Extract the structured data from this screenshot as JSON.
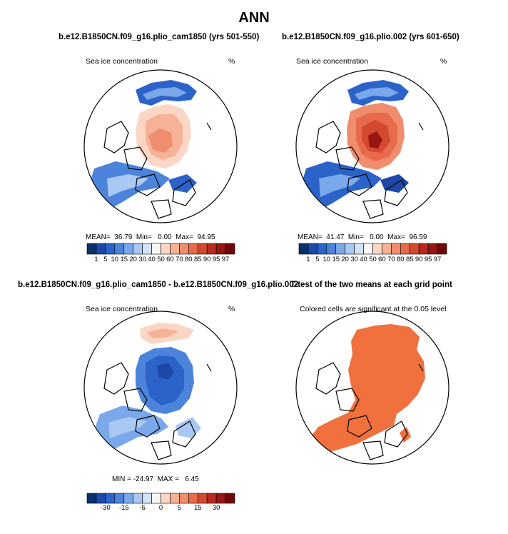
{
  "figure_title": "ANN",
  "colors": {
    "conc_levels": [
      "#08306b",
      "#1c48a8",
      "#2c63c8",
      "#4c84dc",
      "#7aa8ea",
      "#a9c8f3",
      "#d3e3fa",
      "#f7f7f7",
      "#fbd6c4",
      "#f6b297",
      "#ef8d6d",
      "#e66a4b",
      "#d44a31",
      "#b82b1d",
      "#951612",
      "#700808"
    ],
    "significant": "#f0703e"
  },
  "chart_data": [
    {
      "type": "heatmap",
      "title": "b.e12.B1850CN.f09_g16.plio_cam1850 (yrs 501-550)",
      "subtitle_left": "Sea ice concentration",
      "units": "%",
      "projection": "north-polar-stereographic",
      "stats_text": "MEAN=  36.79  Min=   0.00  Max=  94.95",
      "stats": {
        "mean": 36.79,
        "min": 0.0,
        "max": 94.95
      },
      "colorbar_levels": [
        "1",
        "5",
        "10",
        "15",
        "20",
        "30",
        "40",
        "50",
        "60",
        "70",
        "80",
        "85",
        "90",
        "95",
        "97"
      ]
    },
    {
      "type": "heatmap",
      "title": "b.e12.B1850CN.f09_g16.plio.002 (yrs 601-650)",
      "subtitle_left": "Sea ice concentration",
      "units": "%",
      "projection": "north-polar-stereographic",
      "stats_text": "MEAN=  41.47  Min=   0.00  Max=  96.59",
      "stats": {
        "mean": 41.47,
        "min": 0.0,
        "max": 96.59
      },
      "colorbar_levels": [
        "1",
        "5",
        "10",
        "15",
        "20",
        "30",
        "40",
        "50",
        "60",
        "70",
        "80",
        "85",
        "90",
        "95",
        "97"
      ]
    },
    {
      "type": "heatmap",
      "title": "b.e12.B1850CN.f09_g16.plio_cam1850 - b.e12.B1850CN.f09_g16.plio.002",
      "subtitle_left": "Sea ice concentration",
      "units": "%",
      "projection": "north-polar-stereographic",
      "stats_text": "MIN = -24.97  MAX =   6.45",
      "stats": {
        "min": -24.97,
        "max": 6.45
      },
      "colorbar_tick_labels": [
        "-30",
        "-15",
        "-5",
        "0",
        "5",
        "15",
        "30"
      ],
      "colorbar_n_boxes": 16
    },
    {
      "type": "heatmap",
      "title": "T-test of the two means at each grid point",
      "subtitle_left": "Colored cells are significant at the 0.05 level",
      "projection": "north-polar-stereographic"
    }
  ]
}
